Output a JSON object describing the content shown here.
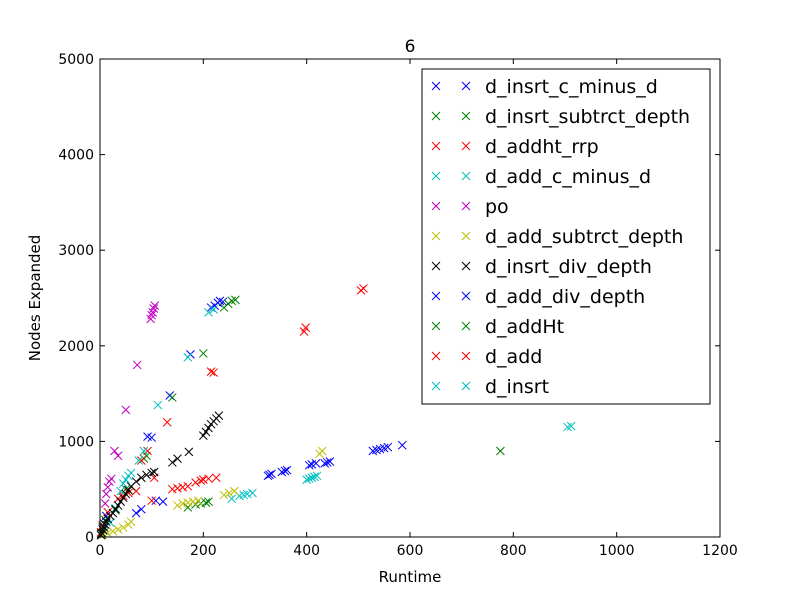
{
  "chart_data": {
    "type": "scatter",
    "title": "6",
    "xlabel": "Runtime",
    "ylabel": "Nodes Expanded",
    "xlim": [
      0,
      1200
    ],
    "ylim": [
      0,
      5000
    ],
    "xticks": [
      0,
      200,
      400,
      600,
      800,
      1000,
      1200
    ],
    "yticks": [
      0,
      1000,
      2000,
      3000,
      4000,
      5000
    ],
    "xtick_labels": [
      "0",
      "200",
      "400",
      "600",
      "800",
      "1000",
      "1200"
    ],
    "ytick_labels": [
      "0",
      "1000",
      "2000",
      "3000",
      "4000",
      "5000"
    ],
    "grid": false,
    "legend_position": "top-right",
    "marker": "x",
    "series": [
      {
        "name": "d_insrt_c_minus_d",
        "color": "#0000ff",
        "x": [
          2,
          5,
          8,
          12,
          70,
          80,
          92,
          100,
          108,
          122,
          135,
          175,
          215,
          222,
          228,
          232,
          238,
          325,
          328,
          332,
          352,
          358,
          362,
          405,
          410,
          418,
          435,
          440,
          445,
          528,
          535,
          542,
          550,
          557,
          585
        ],
        "y": [
          30,
          80,
          140,
          220,
          250,
          290,
          1050,
          1040,
          380,
          370,
          1480,
          1910,
          2400,
          2420,
          2450,
          2470,
          2460,
          640,
          650,
          660,
          680,
          690,
          700,
          750,
          760,
          770,
          770,
          780,
          790,
          900,
          910,
          920,
          930,
          940,
          960
        ]
      },
      {
        "name": "d_insrt_subtrct_depth",
        "color": "#008000",
        "x": [
          2,
          5,
          10,
          30,
          50,
          85,
          90,
          140,
          170,
          185,
          195,
          200,
          205,
          210,
          240,
          248,
          255,
          262,
          775
        ],
        "y": [
          40,
          100,
          180,
          280,
          500,
          820,
          850,
          1460,
          310,
          340,
          350,
          1920,
          360,
          370,
          2400,
          2440,
          2470,
          2480,
          900
        ]
      },
      {
        "name": "d_addht_rrp",
        "color": "#ff0000",
        "x": [
          2,
          5,
          15,
          35,
          45,
          55,
          70,
          80,
          92,
          100,
          105,
          130,
          140,
          150,
          160,
          170,
          185,
          195,
          200,
          210,
          215,
          220,
          225,
          395,
          398,
          505,
          510
        ],
        "y": [
          50,
          120,
          260,
          400,
          430,
          460,
          480,
          800,
          900,
          380,
          620,
          1200,
          500,
          510,
          520,
          530,
          570,
          590,
          600,
          610,
          1730,
          1720,
          620,
          2150,
          2190,
          2580,
          2600
        ]
      },
      {
        "name": "d_add_c_minus_d",
        "color": "#00bfbf",
        "x": [
          3,
          10,
          20,
          30,
          40,
          45,
          50,
          55,
          60,
          75,
          85,
          112,
          170,
          210,
          220,
          255,
          270,
          278,
          285,
          295,
          400,
          405,
          410,
          415,
          420,
          905,
          912
        ],
        "y": [
          20,
          60,
          150,
          300,
          480,
          560,
          600,
          640,
          670,
          800,
          900,
          1380,
          1880,
          2350,
          2380,
          400,
          430,
          440,
          450,
          460,
          600,
          610,
          620,
          630,
          640,
          1150,
          1160
        ]
      },
      {
        "name": "po",
        "color": "#bf00bf",
        "x": [
          10,
          12,
          15,
          18,
          22,
          28,
          35,
          50,
          72,
          98,
          100,
          102,
          104,
          106
        ],
        "y": [
          350,
          450,
          520,
          580,
          610,
          900,
          850,
          1330,
          1800,
          2280,
          2320,
          2350,
          2390,
          2420
        ]
      },
      {
        "name": "d_add_subtrct_depth",
        "color": "#bfbf00",
        "x": [
          5,
          15,
          25,
          35,
          45,
          55,
          60,
          150,
          160,
          170,
          180,
          190,
          240,
          250,
          260,
          425,
          430
        ],
        "y": [
          20,
          40,
          60,
          80,
          100,
          130,
          160,
          330,
          350,
          360,
          370,
          380,
          440,
          460,
          480,
          870,
          900
        ]
      },
      {
        "name": "d_insrt_div_depth",
        "color": "#000000",
        "x": [
          2,
          4,
          6,
          8,
          10,
          12,
          15,
          20,
          25,
          30,
          35,
          40,
          45,
          50,
          55,
          60,
          70,
          80,
          90,
          100,
          105,
          140,
          150,
          172,
          200,
          205,
          210,
          215,
          220,
          225,
          230
        ],
        "y": [
          20,
          40,
          70,
          100,
          130,
          160,
          190,
          220,
          250,
          290,
          330,
          370,
          410,
          450,
          490,
          530,
          580,
          620,
          650,
          670,
          680,
          780,
          820,
          890,
          1060,
          1100,
          1140,
          1180,
          1210,
          1240,
          1270
        ]
      }
    ]
  }
}
